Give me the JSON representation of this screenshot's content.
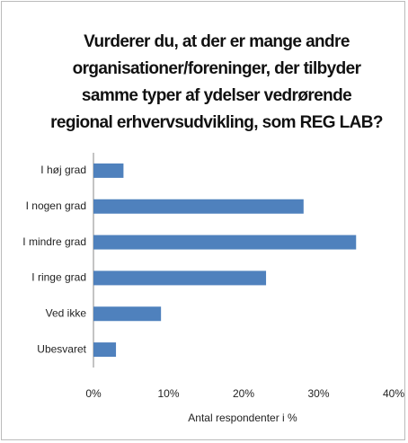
{
  "chart_data": {
    "type": "hbar",
    "title": "Vurderer du, at der er mange andre organisationer/foreninger, der tilbyder samme typer af ydelser vedrørende regional erhvervsudvikling, som REG LAB?",
    "categories": [
      "I høj grad",
      "I nogen grad",
      "I mindre grad",
      "I ringe grad",
      "Ved ikke",
      "Ubesvaret"
    ],
    "values": [
      4,
      28,
      35,
      23,
      9,
      3
    ],
    "color": "#4f81bd",
    "xlabel": "Antal respondenter i %",
    "xlim": [
      0,
      40
    ],
    "xticks": [
      {
        "value": 0,
        "label": "0%"
      },
      {
        "value": 10,
        "label": "10%"
      },
      {
        "value": 20,
        "label": "20%"
      },
      {
        "value": 30,
        "label": "30%"
      },
      {
        "value": 40,
        "label": "40%"
      }
    ],
    "grid": false
  }
}
